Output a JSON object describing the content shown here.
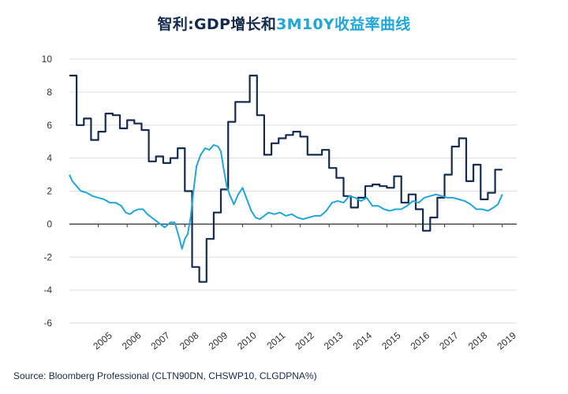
{
  "chart_data": {
    "type": "line",
    "title_part1": "智利:GDP增长和",
    "title_part2": "3M10Y收益率曲线",
    "source": "Source: Bloomberg Professional  (CLTN90DN, CHSWP10, CLGDPNA%)",
    "xlabel": "",
    "ylabel": "",
    "xlim": [
      2004.0,
      2019.5
    ],
    "ylim": [
      -6,
      10
    ],
    "y_ticks": [
      "10",
      "8",
      "6",
      "4",
      "2",
      "0",
      "-2",
      "-4",
      "-6"
    ],
    "x_ticks": [
      "2005",
      "2006",
      "2007",
      "2008",
      "2009",
      "2010",
      "2011",
      "2012",
      "2013",
      "2014",
      "2015",
      "2016",
      "2017",
      "2018",
      "2019"
    ],
    "grid": true,
    "colors": {
      "gdp": "#142b4f",
      "curve": "#1fa6da",
      "title_dark": "#142b4f",
      "title_blue": "#1fa6da"
    },
    "series": [
      {
        "values": [
          [
            2004.0,
            9.0
          ],
          [
            2004.25,
            9.0
          ],
          [
            2004.25,
            6.0
          ],
          [
            2004.5,
            6.0
          ],
          [
            2004.5,
            6.4
          ],
          [
            2004.75,
            6.4
          ],
          [
            2004.75,
            5.1
          ],
          [
            2005.0,
            5.1
          ],
          [
            2005.0,
            5.6
          ],
          [
            2005.25,
            5.6
          ],
          [
            2005.25,
            6.7
          ],
          [
            2005.5,
            6.7
          ],
          [
            2005.5,
            6.6
          ],
          [
            2005.75,
            6.6
          ],
          [
            2005.75,
            5.8
          ],
          [
            2006.0,
            5.8
          ],
          [
            2006.0,
            6.3
          ],
          [
            2006.25,
            6.3
          ],
          [
            2006.25,
            6.1
          ],
          [
            2006.5,
            6.1
          ],
          [
            2006.5,
            5.7
          ],
          [
            2006.75,
            5.7
          ],
          [
            2006.75,
            3.8
          ],
          [
            2007.0,
            3.8
          ],
          [
            2007.0,
            4.1
          ],
          [
            2007.25,
            4.1
          ],
          [
            2007.25,
            3.7
          ],
          [
            2007.5,
            3.7
          ],
          [
            2007.5,
            4.0
          ],
          [
            2007.75,
            4.0
          ],
          [
            2007.75,
            4.6
          ],
          [
            2008.0,
            4.6
          ],
          [
            2008.0,
            2.0
          ],
          [
            2008.25,
            2.0
          ],
          [
            2008.25,
            -2.6
          ],
          [
            2008.5,
            -2.6
          ],
          [
            2008.5,
            -3.5
          ],
          [
            2008.75,
            -3.5
          ],
          [
            2008.75,
            -0.9
          ],
          [
            2009.0,
            -0.9
          ],
          [
            2009.0,
            0.7
          ],
          [
            2009.25,
            0.7
          ],
          [
            2009.25,
            2.1
          ],
          [
            2009.5,
            2.1
          ],
          [
            2009.5,
            6.2
          ],
          [
            2009.75,
            6.2
          ],
          [
            2009.75,
            7.4
          ],
          [
            2010.25,
            7.4
          ],
          [
            2010.25,
            9.0
          ],
          [
            2010.5,
            9.0
          ],
          [
            2010.5,
            6.6
          ],
          [
            2010.75,
            6.6
          ],
          [
            2010.75,
            4.2
          ],
          [
            2011.0,
            4.2
          ],
          [
            2011.0,
            4.9
          ],
          [
            2011.25,
            4.9
          ],
          [
            2011.25,
            5.2
          ],
          [
            2011.5,
            5.2
          ],
          [
            2011.5,
            5.4
          ],
          [
            2011.75,
            5.4
          ],
          [
            2011.75,
            5.6
          ],
          [
            2012.0,
            5.6
          ],
          [
            2012.0,
            5.3
          ],
          [
            2012.25,
            5.3
          ],
          [
            2012.25,
            4.2
          ],
          [
            2012.75,
            4.2
          ],
          [
            2012.75,
            4.5
          ],
          [
            2013.0,
            4.5
          ],
          [
            2013.0,
            3.4
          ],
          [
            2013.25,
            3.4
          ],
          [
            2013.25,
            2.8
          ],
          [
            2013.5,
            2.8
          ],
          [
            2013.5,
            1.7
          ],
          [
            2013.75,
            1.7
          ],
          [
            2013.75,
            1.0
          ],
          [
            2014.0,
            1.0
          ],
          [
            2014.0,
            1.6
          ],
          [
            2014.25,
            1.6
          ],
          [
            2014.25,
            2.3
          ],
          [
            2014.5,
            2.3
          ],
          [
            2014.5,
            2.4
          ],
          [
            2014.75,
            2.4
          ],
          [
            2014.75,
            2.3
          ],
          [
            2015.0,
            2.3
          ],
          [
            2015.0,
            2.2
          ],
          [
            2015.25,
            2.2
          ],
          [
            2015.25,
            2.9
          ],
          [
            2015.5,
            2.9
          ],
          [
            2015.5,
            1.3
          ],
          [
            2015.75,
            1.3
          ],
          [
            2015.75,
            1.8
          ],
          [
            2016.0,
            1.8
          ],
          [
            2016.0,
            0.9
          ],
          [
            2016.25,
            0.9
          ],
          [
            2016.25,
            -0.4
          ],
          [
            2016.5,
            -0.4
          ],
          [
            2016.5,
            0.4
          ],
          [
            2016.75,
            0.4
          ],
          [
            2016.75,
            1.6
          ],
          [
            2017.0,
            1.6
          ],
          [
            2017.0,
            3.0
          ],
          [
            2017.25,
            3.0
          ],
          [
            2017.25,
            4.7
          ],
          [
            2017.5,
            4.7
          ],
          [
            2017.5,
            5.2
          ],
          [
            2017.75,
            5.2
          ],
          [
            2017.75,
            2.6
          ],
          [
            2018.0,
            2.6
          ],
          [
            2018.0,
            3.6
          ],
          [
            2018.25,
            3.6
          ],
          [
            2018.25,
            1.5
          ],
          [
            2018.5,
            1.5
          ],
          [
            2018.5,
            1.9
          ],
          [
            2018.75,
            1.9
          ],
          [
            2018.75,
            3.3
          ],
          [
            2019.0,
            3.3
          ]
        ]
      },
      {
        "values": [
          [
            2004.0,
            3.0
          ],
          [
            2004.1,
            2.6
          ],
          [
            2004.25,
            2.3
          ],
          [
            2004.4,
            2.0
          ],
          [
            2004.6,
            1.9
          ],
          [
            2004.8,
            1.7
          ],
          [
            2005.0,
            1.6
          ],
          [
            2005.2,
            1.5
          ],
          [
            2005.4,
            1.3
          ],
          [
            2005.6,
            1.3
          ],
          [
            2005.8,
            1.1
          ],
          [
            2005.95,
            0.7
          ],
          [
            2006.1,
            0.6
          ],
          [
            2006.25,
            0.8
          ],
          [
            2006.4,
            0.9
          ],
          [
            2006.55,
            0.9
          ],
          [
            2006.7,
            0.6
          ],
          [
            2006.85,
            0.4
          ],
          [
            2007.0,
            0.2
          ],
          [
            2007.15,
            0.0
          ],
          [
            2007.3,
            -0.2
          ],
          [
            2007.5,
            0.1
          ],
          [
            2007.65,
            0.1
          ],
          [
            2007.8,
            -0.8
          ],
          [
            2007.9,
            -1.5
          ],
          [
            2008.0,
            -0.9
          ],
          [
            2008.1,
            -0.6
          ],
          [
            2008.2,
            0.4
          ],
          [
            2008.3,
            2.0
          ],
          [
            2008.4,
            3.5
          ],
          [
            2008.55,
            4.2
          ],
          [
            2008.7,
            4.6
          ],
          [
            2008.85,
            4.5
          ],
          [
            2009.0,
            4.8
          ],
          [
            2009.15,
            4.7
          ],
          [
            2009.25,
            4.4
          ],
          [
            2009.35,
            3.3
          ],
          [
            2009.45,
            2.3
          ],
          [
            2009.55,
            1.8
          ],
          [
            2009.7,
            1.2
          ],
          [
            2009.85,
            1.8
          ],
          [
            2010.0,
            2.2
          ],
          [
            2010.15,
            1.5
          ],
          [
            2010.3,
            0.8
          ],
          [
            2010.45,
            0.4
          ],
          [
            2010.6,
            0.3
          ],
          [
            2010.75,
            0.5
          ],
          [
            2010.9,
            0.7
          ],
          [
            2011.1,
            0.6
          ],
          [
            2011.3,
            0.7
          ],
          [
            2011.5,
            0.5
          ],
          [
            2011.7,
            0.6
          ],
          [
            2011.9,
            0.4
          ],
          [
            2012.1,
            0.3
          ],
          [
            2012.3,
            0.4
          ],
          [
            2012.5,
            0.5
          ],
          [
            2012.7,
            0.5
          ],
          [
            2012.9,
            0.8
          ],
          [
            2013.1,
            1.3
          ],
          [
            2013.3,
            1.4
          ],
          [
            2013.5,
            1.3
          ],
          [
            2013.7,
            1.7
          ],
          [
            2013.9,
            1.6
          ],
          [
            2014.1,
            1.4
          ],
          [
            2014.3,
            1.6
          ],
          [
            2014.5,
            1.1
          ],
          [
            2014.7,
            1.1
          ],
          [
            2014.9,
            0.9
          ],
          [
            2015.1,
            0.8
          ],
          [
            2015.3,
            0.9
          ],
          [
            2015.5,
            0.9
          ],
          [
            2015.7,
            1.1
          ],
          [
            2015.9,
            1.4
          ],
          [
            2016.1,
            1.3
          ],
          [
            2016.3,
            1.6
          ],
          [
            2016.5,
            1.7
          ],
          [
            2016.7,
            1.8
          ],
          [
            2016.9,
            1.7
          ],
          [
            2017.1,
            1.6
          ],
          [
            2017.3,
            1.6
          ],
          [
            2017.5,
            1.5
          ],
          [
            2017.7,
            1.4
          ],
          [
            2017.9,
            1.2
          ],
          [
            2018.1,
            0.9
          ],
          [
            2018.3,
            0.9
          ],
          [
            2018.5,
            0.8
          ],
          [
            2018.7,
            1.0
          ],
          [
            2018.85,
            1.2
          ],
          [
            2019.0,
            1.8
          ]
        ]
      }
    ]
  }
}
